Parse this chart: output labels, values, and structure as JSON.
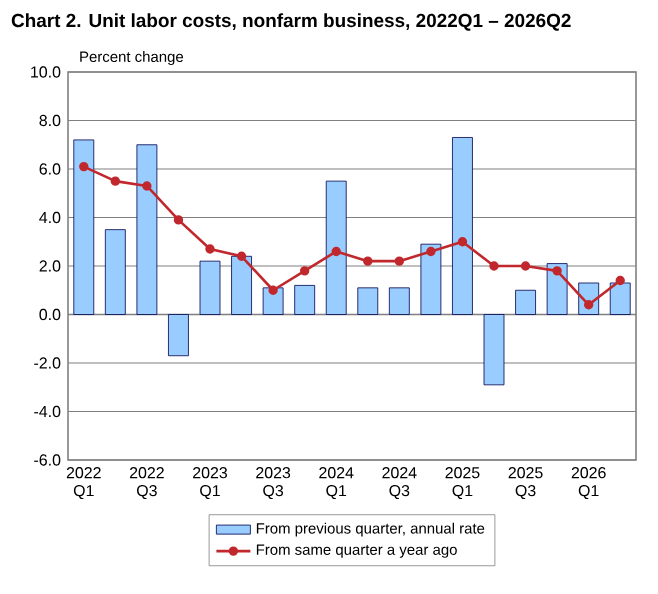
{
  "chart_data": {
    "type": "bar",
    "title": "Chart  2. Unit labor costs, nonfarm business, 2022Q1 – 2026Q2",
    "ylabel": "Percent change",
    "categories": [
      "2022 Q1",
      null,
      "2022 Q3",
      null,
      "2023 Q1",
      null,
      "2023 Q3",
      null,
      "2024 Q1",
      null,
      "2024 Q3",
      null,
      "2025 Q1",
      null,
      "2025 Q3",
      null,
      "2026 Q1",
      null
    ],
    "series": [
      {
        "name": "From previous quarter, annual rate",
        "color": "#99ccff",
        "values": [
          7.2,
          3.5,
          7.0,
          -1.7,
          2.2,
          2.4,
          1.1,
          1.2,
          5.5,
          1.1,
          1.1,
          2.9,
          7.3,
          -2.9,
          1.0,
          2.1,
          1.3,
          1.3
        ]
      },
      {
        "name": "From same quarter a year ago",
        "type": "line",
        "color": "#c0282d",
        "marker": "circle",
        "values": [
          6.1,
          5.5,
          5.3,
          3.9,
          2.7,
          2.4,
          1.0,
          1.8,
          2.6,
          2.2,
          2.2,
          2.6,
          3.0,
          2.0,
          2.0,
          1.8,
          0.4,
          1.4
        ]
      }
    ],
    "ylim": [
      -6,
      10
    ],
    "yticks": [
      {
        "value": -6,
        "label": "-6.0"
      },
      {
        "value": -4,
        "label": "-4.0"
      },
      {
        "value": -2,
        "label": "-2.0"
      },
      {
        "value": 0,
        "label": "0.0"
      },
      {
        "value": 2,
        "label": "2.0"
      },
      {
        "value": 4,
        "label": "4.0"
      },
      {
        "value": 6,
        "label": "6.0"
      },
      {
        "value": 8,
        "label": "8.0"
      },
      {
        "value": 10,
        "label": "10.0"
      }
    ],
    "grid": "y",
    "legend": "bottom"
  }
}
